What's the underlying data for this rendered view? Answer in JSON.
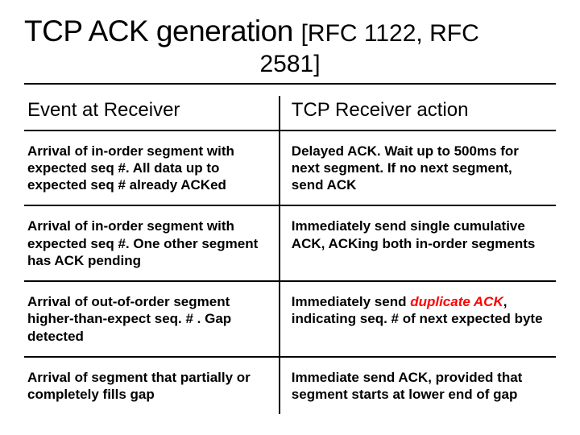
{
  "title": {
    "main": "TCP ACK generation ",
    "sub_inline": "[RFC 1122, RFC",
    "sub_line2": "2581]",
    "main_fontsize": 37,
    "sub_fontsize": 30,
    "underline_color": "#000000"
  },
  "table": {
    "type": "table",
    "divider_color": "#000000",
    "divider_width": 2,
    "header_fontsize": 24,
    "cell_fontsize": 17,
    "cell_fontweight": 700,
    "highlight_color": "#ff0000",
    "columns": [
      {
        "label": "Event at Receiver",
        "width_pct": 48
      },
      {
        "label": "TCP Receiver action",
        "width_pct": 52
      }
    ],
    "rows": [
      {
        "event": "Arrival of in-order segment with expected seq #. All data up to expected seq # already ACKed",
        "action_pre": "Delayed ACK. Wait up to 500ms for next segment. If no next segment, send ACK",
        "action_hl": "",
        "action_post": ""
      },
      {
        "event": "Arrival of in-order segment with expected seq #. One other segment has ACK pending",
        "action_pre": "Immediately send single cumulative ACK, ACKing both in-order segments",
        "action_hl": "",
        "action_post": ""
      },
      {
        "event": "Arrival of out-of-order segment higher-than-expect seq. # . Gap detected",
        "action_pre": "Immediately send ",
        "action_hl": "duplicate ACK",
        "action_post": ", indicating seq. # of next expected byte"
      },
      {
        "event": "Arrival of segment that partially or completely fills gap",
        "action_pre": "Immediate send ACK, provided that segment starts at lower end of gap",
        "action_hl": "",
        "action_post": ""
      }
    ]
  },
  "background_color": "#ffffff",
  "text_color": "#000000"
}
